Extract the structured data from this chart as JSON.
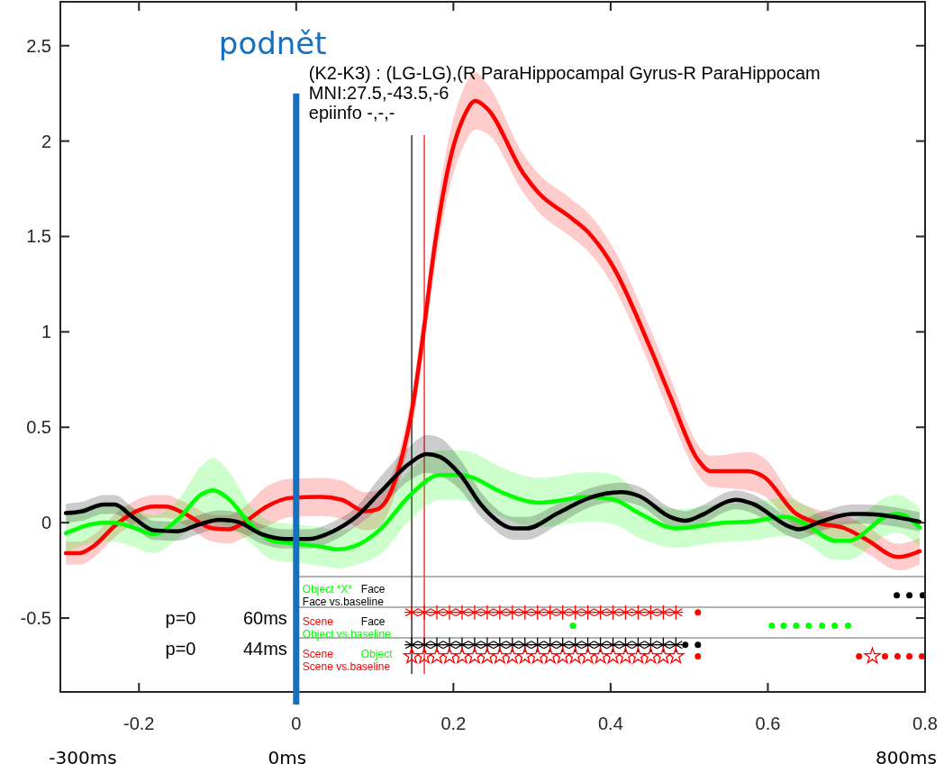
{
  "chart_data": {
    "type": "line",
    "xlim": [
      -0.3,
      0.8
    ],
    "ylim": [
      -0.887,
      2.73
    ],
    "xticks": [
      -0.2,
      0,
      0.2,
      0.4,
      0.6,
      0.8
    ],
    "yticks": [
      -0.5,
      0,
      0.5,
      1,
      1.5,
      2,
      2.5
    ],
    "grid": false,
    "line_style": "solid",
    "marker": "none",
    "series": [
      {
        "color": "#000000",
        "x": [
          -0.293,
          -0.272,
          -0.245,
          -0.231,
          -0.208,
          -0.181,
          -0.151,
          -0.124,
          -0.098,
          -0.075,
          -0.044,
          -0.015,
          0.016,
          0.047,
          0.076,
          0.107,
          0.144,
          0.166,
          0.183,
          0.209,
          0.235,
          0.245,
          0.277,
          0.293,
          0.333,
          0.373,
          0.413,
          0.436,
          0.476,
          0.495,
          0.516,
          0.548,
          0.559,
          0.58,
          0.627,
          0.639,
          0.667,
          0.707,
          0.723,
          0.793
        ],
        "values": [
          0.05,
          0.06,
          0.095,
          0.095,
          0.03,
          -0.04,
          -0.045,
          -0.01,
          0.015,
          0.005,
          -0.06,
          -0.085,
          -0.085,
          -0.045,
          0.03,
          0.16,
          0.31,
          0.36,
          0.345,
          0.25,
          0.095,
          0.05,
          -0.03,
          -0.03,
          0.05,
          0.13,
          0.16,
          0.14,
          0.03,
          0.01,
          0.04,
          0.11,
          0.12,
          0.1,
          -0.02,
          -0.035,
          0.005,
          0.045,
          0.045,
          0.005
        ],
        "lower": [
          0,
          0.01,
          0.045,
          0.045,
          -0.02,
          -0.09,
          -0.095,
          -0.06,
          -0.035,
          -0.045,
          -0.11,
          -0.135,
          -0.135,
          -0.095,
          -0.02,
          0.08,
          0.22,
          0.26,
          0.245,
          0.17,
          0.03,
          -0.01,
          -0.09,
          -0.09,
          -0.01,
          0.08,
          0.11,
          0.09,
          -0.02,
          -0.04,
          -0.01,
          0.06,
          0.07,
          0.05,
          -0.07,
          -0.085,
          -0.045,
          -0.005,
          -0.005,
          -0.045
        ],
        "upper": [
          0.1,
          0.11,
          0.145,
          0.145,
          0.08,
          0.01,
          0.005,
          0.04,
          0.065,
          0.055,
          -0.01,
          -0.035,
          -0.035,
          0.005,
          0.08,
          0.24,
          0.4,
          0.46,
          0.445,
          0.33,
          0.16,
          0.11,
          0.03,
          0.03,
          0.1,
          0.18,
          0.21,
          0.19,
          0.08,
          0.06,
          0.09,
          0.16,
          0.17,
          0.15,
          0.03,
          0.015,
          0.055,
          0.095,
          0.095,
          0.055
        ]
      },
      {
        "color": "#00ff00",
        "x": [
          -0.293,
          -0.245,
          -0.231,
          -0.208,
          -0.181,
          -0.151,
          -0.12,
          -0.106,
          -0.086,
          -0.06,
          -0.03,
          0.001,
          0.031,
          0.053,
          0.073,
          0.107,
          0.144,
          0.183,
          0.206,
          0.222,
          0.261,
          0.309,
          0.373,
          0.405,
          0.436,
          0.484,
          0.543,
          0.575,
          0.623,
          0.647,
          0.686,
          0.702,
          0.755,
          0.766,
          0.793
        ],
        "values": [
          -0.055,
          0,
          0,
          -0.025,
          -0.06,
          0.015,
          0.15,
          0.17,
          0.125,
          0,
          -0.095,
          -0.11,
          -0.125,
          -0.14,
          -0.125,
          -0.035,
          0.14,
          0.25,
          0.25,
          0.24,
          0.16,
          0.105,
          0.135,
          0.12,
          0.05,
          -0.03,
          0,
          0.005,
          0.03,
          -0.005,
          -0.095,
          -0.095,
          0.04,
          0.045,
          -0.025
        ],
        "lower": [
          -0.155,
          -0.1,
          -0.1,
          -0.125,
          -0.16,
          -0.085,
          0,
          0,
          -0.02,
          -0.1,
          -0.195,
          -0.21,
          -0.225,
          -0.24,
          -0.225,
          -0.165,
          0.01,
          0.12,
          0.12,
          0.11,
          0.03,
          -0.025,
          0.005,
          -0.01,
          -0.08,
          -0.13,
          -0.1,
          -0.095,
          -0.07,
          -0.105,
          -0.195,
          -0.195,
          -0.06,
          -0.055,
          -0.125
        ],
        "upper": [
          0.045,
          0.1,
          0.1,
          0.075,
          0.04,
          0.115,
          0.3,
          0.34,
          0.27,
          0.1,
          0.005,
          -0.01,
          -0.025,
          -0.04,
          -0.025,
          0.095,
          0.27,
          0.38,
          0.38,
          0.37,
          0.29,
          0.235,
          0.265,
          0.25,
          0.15,
          0.07,
          0.1,
          0.105,
          0.13,
          0.095,
          0.005,
          0.005,
          0.14,
          0.145,
          0.075
        ]
      },
      {
        "color": "#ff0000",
        "x": [
          -0.293,
          -0.276,
          -0.26,
          -0.226,
          -0.181,
          -0.166,
          -0.143,
          -0.106,
          -0.086,
          -0.067,
          -0.0375,
          -0.007,
          0.031,
          0.058,
          0.0875,
          0.103,
          0.118,
          0.133,
          0.149,
          0.16,
          0.178,
          0.195,
          0.2125,
          0.228,
          0.243,
          0.289,
          0.308,
          0.349,
          0.372,
          0.402,
          0.451,
          0.476,
          0.511,
          0.527,
          0.575,
          0.595,
          0.635,
          0.662,
          0.698,
          0.726,
          0.766,
          0.793
        ],
        "values": [
          -0.16,
          -0.16,
          -0.13,
          0,
          0.085,
          0.085,
          0.05,
          -0.03,
          -0.035,
          0,
          0.085,
          0.13,
          0.135,
          0.12,
          0.06,
          0.07,
          0.14,
          0.32,
          0.63,
          0.94,
          1.5,
          1.89,
          2.12,
          2.21,
          2.17,
          1.83,
          1.73,
          1.6,
          1.52,
          1.35,
          0.91,
          0.66,
          0.33,
          0.27,
          0.27,
          0.24,
          0.05,
          0,
          -0.03,
          -0.09,
          -0.18,
          -0.15
        ],
        "lower": [
          -0.22,
          -0.22,
          -0.19,
          -0.06,
          0.025,
          0.025,
          -0.01,
          -0.1,
          -0.11,
          -0.08,
          -0.02,
          0.03,
          0.035,
          0.02,
          -0.04,
          -0.03,
          0.06,
          0.24,
          0.53,
          0.84,
          1.38,
          1.75,
          1.97,
          2.06,
          2.04,
          1.73,
          1.63,
          1.5,
          1.42,
          1.25,
          0.81,
          0.56,
          0.25,
          0.19,
          0.17,
          0.14,
          -0.02,
          -0.07,
          -0.1,
          -0.16,
          -0.25,
          -0.22
        ],
        "upper": [
          -0.1,
          -0.1,
          -0.07,
          0.06,
          0.145,
          0.145,
          0.11,
          0.04,
          0.04,
          0.08,
          0.19,
          0.23,
          0.235,
          0.22,
          0.16,
          0.17,
          0.22,
          0.4,
          0.73,
          1.04,
          1.62,
          2.03,
          2.27,
          2.36,
          2.3,
          1.93,
          1.83,
          1.7,
          1.62,
          1.45,
          1.01,
          0.76,
          0.41,
          0.35,
          0.37,
          0.34,
          0.12,
          0.07,
          0.04,
          -0.02,
          -0.11,
          -0.08
        ]
      },
      {
        "type": "scatter",
        "marker": "cross",
        "color": "#ff0000",
        "x": [
          0.147,
          0.163,
          0.179,
          0.195,
          0.211,
          0.227,
          0.243,
          0.259,
          0.275,
          0.291,
          0.307,
          0.323,
          0.339,
          0.355,
          0.371,
          0.387,
          0.403,
          0.419,
          0.435,
          0.451,
          0.467,
          0.483
        ],
        "values": [
          -0.47,
          -0.47,
          -0.47,
          -0.47,
          -0.47,
          -0.47,
          -0.47,
          -0.47,
          -0.47,
          -0.47,
          -0.47,
          -0.47,
          -0.47,
          -0.47,
          -0.47,
          -0.47,
          -0.47,
          -0.47,
          -0.47,
          -0.47,
          -0.47,
          -0.47
        ]
      },
      {
        "type": "scatter",
        "marker": "circle",
        "color": "#ff0000",
        "x": [
          0.511
        ],
        "values": [
          -0.47
        ]
      },
      {
        "type": "scatter",
        "marker": "cross",
        "color": "#000000",
        "x": [
          0.147,
          0.163,
          0.179,
          0.195,
          0.211,
          0.227,
          0.243,
          0.259,
          0.275,
          0.291,
          0.307,
          0.323,
          0.339,
          0.355,
          0.371,
          0.387,
          0.403,
          0.419,
          0.435,
          0.451,
          0.467,
          0.483
        ],
        "values": [
          -0.64,
          -0.64,
          -0.64,
          -0.64,
          -0.64,
          -0.64,
          -0.64,
          -0.64,
          -0.64,
          -0.64,
          -0.64,
          -0.64,
          -0.64,
          -0.64,
          -0.64,
          -0.64,
          -0.64,
          -0.64,
          -0.64,
          -0.64,
          -0.64,
          -0.64
        ]
      },
      {
        "type": "scatter",
        "marker": "circle",
        "color": "#000000",
        "x": [
          0.495,
          0.511
        ],
        "values": [
          -0.64,
          -0.64
        ]
      },
      {
        "type": "scatter",
        "marker": "star",
        "color": "#ff0000",
        "x": [
          0.147,
          0.163,
          0.179,
          0.195,
          0.211,
          0.227,
          0.243,
          0.259,
          0.275,
          0.291,
          0.307,
          0.323,
          0.339,
          0.355,
          0.371,
          0.387,
          0.403,
          0.419,
          0.435,
          0.451,
          0.467,
          0.483,
          0.733
        ],
        "values": [
          -0.7,
          -0.7,
          -0.7,
          -0.7,
          -0.7,
          -0.7,
          -0.7,
          -0.7,
          -0.7,
          -0.7,
          -0.7,
          -0.7,
          -0.7,
          -0.7,
          -0.7,
          -0.7,
          -0.7,
          -0.7,
          -0.7,
          -0.7,
          -0.7,
          -0.7,
          -0.7
        ]
      },
      {
        "type": "scatter",
        "marker": "circle",
        "color": "#ff0000",
        "x": [
          0.511,
          0.716,
          0.749,
          0.765,
          0.78,
          0.796
        ],
        "values": [
          -0.7,
          -0.7,
          -0.7,
          -0.7,
          -0.7,
          -0.7
        ]
      },
      {
        "type": "scatter",
        "marker": "circle",
        "color": "#00ff00",
        "x": [
          0.352,
          0.605,
          0.62,
          0.636,
          0.652,
          0.669,
          0.685,
          0.702
        ],
        "values": [
          -0.54,
          -0.54,
          -0.54,
          -0.54,
          -0.54,
          -0.54,
          -0.54,
          -0.54
        ]
      },
      {
        "type": "scatter",
        "marker": "circle",
        "color": "#000000",
        "x": [
          0.764,
          0.78,
          0.797
        ],
        "values": [
          -0.38,
          -0.38,
          -0.38
        ]
      }
    ],
    "ref_lines": [
      {
        "axis": "x",
        "value": 0,
        "label": "podnět",
        "color": "#1570c0"
      },
      {
        "axis": "x",
        "value": 0.147,
        "color": "#333333"
      },
      {
        "axis": "x",
        "value": 0.163,
        "color": "#ff3030"
      },
      {
        "axis": "y",
        "value": -0.283,
        "color": "#999999"
      },
      {
        "axis": "y",
        "value": -0.443,
        "color": "#999999"
      },
      {
        "axis": "y",
        "value": -0.604,
        "color": "#999999"
      }
    ],
    "annotations": [
      "(K2-K3) : (LG-LG),(R ParaHippocampal Gyrus-R ParaHippocam",
      "MNI:27.5,-43.5,-6",
      "epiinfo -,-,-",
      "-300ms",
      "0ms",
      "800ms",
      "Object *X*",
      "Face",
      "Face vs.baseline",
      "Scene",
      "Face",
      "Object vs.baseline",
      "Scene",
      "Object",
      "Scene vs.baseline",
      "60ms",
      "44ms",
      "p=0",
      "p=0"
    ]
  }
}
